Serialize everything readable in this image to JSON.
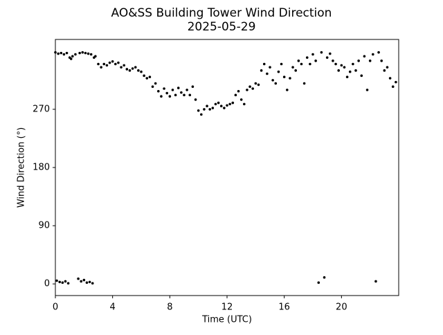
{
  "chart_data": {
    "type": "scatter",
    "title": "AO&SS Building Tower Wind Direction",
    "subtitle": "2025-05-29",
    "xlabel": "Time (UTC)",
    "ylabel": "Wind Direction (°)",
    "xlim": [
      0,
      24
    ],
    "ylim": [
      -18,
      378
    ],
    "xticks": [
      0,
      4,
      8,
      12,
      16,
      20
    ],
    "yticks": [
      0,
      90,
      180,
      270
    ],
    "grid": false,
    "series": [
      {
        "color": "#000000",
        "x": [
          0.0,
          0.1,
          0.2,
          0.3,
          0.4,
          0.5,
          0.6,
          0.7,
          0.8,
          0.9,
          1.0,
          1.1,
          1.2,
          1.4,
          1.6,
          1.7,
          1.8,
          1.9,
          2.0,
          2.1,
          2.2,
          2.3,
          2.4,
          2.5,
          2.6,
          2.7,
          2.8,
          3.0,
          3.2,
          3.4,
          3.6,
          3.8,
          4.0,
          4.2,
          4.4,
          4.6,
          4.8,
          5.0,
          5.2,
          5.4,
          5.6,
          5.8,
          6.0,
          6.2,
          6.4,
          6.6,
          6.8,
          7.0,
          7.2,
          7.4,
          7.6,
          7.8,
          8.0,
          8.2,
          8.4,
          8.6,
          8.8,
          9.0,
          9.2,
          9.4,
          9.6,
          9.8,
          10.0,
          10.2,
          10.4,
          10.6,
          10.8,
          11.0,
          11.2,
          11.4,
          11.6,
          11.8,
          12.0,
          12.2,
          12.4,
          12.6,
          12.8,
          13.0,
          13.2,
          13.4,
          13.6,
          13.8,
          14.0,
          14.2,
          14.4,
          14.6,
          14.8,
          15.0,
          15.2,
          15.4,
          15.6,
          15.8,
          16.0,
          16.2,
          16.4,
          16.6,
          16.8,
          17.0,
          17.2,
          17.4,
          17.6,
          17.8,
          18.0,
          18.2,
          18.4,
          18.6,
          18.8,
          19.0,
          19.2,
          19.4,
          19.6,
          19.8,
          20.0,
          20.2,
          20.4,
          20.6,
          20.8,
          21.0,
          21.2,
          21.4,
          21.6,
          21.8,
          22.0,
          22.2,
          22.4,
          22.6,
          22.8,
          23.0,
          23.2,
          23.4,
          23.6,
          23.8
        ],
        "values": [
          358,
          5,
          356,
          3,
          357,
          2,
          355,
          4,
          357,
          1,
          350,
          348,
          352,
          355,
          8,
          357,
          4,
          358,
          6,
          357,
          2,
          356,
          3,
          355,
          1,
          350,
          352,
          340,
          335,
          340,
          338,
          342,
          344,
          340,
          342,
          335,
          338,
          332,
          330,
          333,
          335,
          330,
          328,
          322,
          318,
          320,
          305,
          310,
          298,
          290,
          302,
          295,
          290,
          300,
          292,
          303,
          296,
          292,
          300,
          292,
          305,
          285,
          268,
          262,
          270,
          275,
          270,
          272,
          278,
          280,
          275,
          272,
          276,
          278,
          280,
          292,
          298,
          285,
          278,
          300,
          305,
          302,
          310,
          308,
          330,
          340,
          325,
          335,
          315,
          310,
          328,
          340,
          320,
          300,
          318,
          335,
          330,
          345,
          340,
          310,
          350,
          340,
          355,
          345,
          2,
          358,
          10,
          350,
          356,
          345,
          340,
          330,
          338,
          335,
          320,
          328,
          340,
          330,
          345,
          322,
          352,
          300,
          345,
          355,
          4,
          358,
          345,
          330,
          335,
          318,
          305,
          312
        ]
      }
    ]
  }
}
